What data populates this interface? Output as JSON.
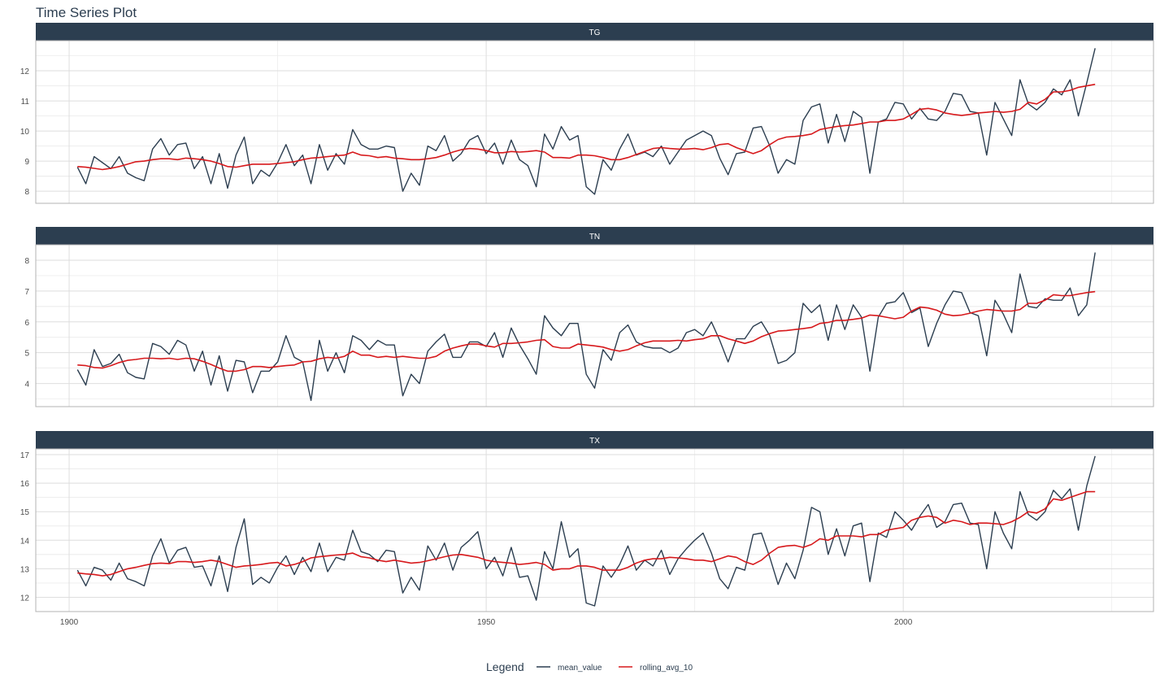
{
  "chart_data": {
    "type": "line",
    "title": "Time Series Plot",
    "xlabel": "",
    "ylabel": "",
    "legend": {
      "title": "Legend",
      "position": "bottom",
      "entries": [
        {
          "name": "mean_value",
          "color": "#2c3e50"
        },
        {
          "name": "rolling_avg_10",
          "color": "#d7191c"
        }
      ]
    },
    "grid": true,
    "xlim": [
      1896,
      2030
    ],
    "x_ticks": [
      1900,
      1950,
      2000
    ],
    "x": [
      1901,
      1902,
      1903,
      1904,
      1905,
      1906,
      1907,
      1908,
      1909,
      1910,
      1911,
      1912,
      1913,
      1914,
      1915,
      1916,
      1917,
      1918,
      1919,
      1920,
      1921,
      1922,
      1923,
      1924,
      1925,
      1926,
      1927,
      1928,
      1929,
      1930,
      1931,
      1932,
      1933,
      1934,
      1935,
      1936,
      1937,
      1938,
      1939,
      1940,
      1941,
      1942,
      1943,
      1944,
      1945,
      1946,
      1947,
      1948,
      1949,
      1950,
      1951,
      1952,
      1953,
      1954,
      1955,
      1956,
      1957,
      1958,
      1959,
      1960,
      1961,
      1962,
      1963,
      1964,
      1965,
      1966,
      1967,
      1968,
      1969,
      1970,
      1971,
      1972,
      1973,
      1974,
      1975,
      1976,
      1977,
      1978,
      1979,
      1980,
      1981,
      1982,
      1983,
      1984,
      1985,
      1986,
      1987,
      1988,
      1989,
      1990,
      1991,
      1992,
      1993,
      1994,
      1995,
      1996,
      1997,
      1998,
      1999,
      2000,
      2001,
      2002,
      2003,
      2004,
      2005,
      2006,
      2007,
      2008,
      2009,
      2010,
      2011,
      2012,
      2013,
      2014,
      2015,
      2016,
      2017,
      2018,
      2019,
      2020,
      2021,
      2022,
      2023
    ],
    "panels": [
      {
        "label": "TG",
        "ylim": [
          7.6,
          13.0
        ],
        "y_ticks": [
          8,
          9,
          10,
          11,
          12
        ],
        "series": [
          {
            "name": "mean_value",
            "values": [
              8.8,
              8.25,
              9.15,
              8.95,
              8.75,
              9.15,
              8.6,
              8.45,
              8.35,
              9.4,
              9.75,
              9.2,
              9.55,
              9.6,
              8.75,
              9.15,
              8.25,
              9.25,
              8.1,
              9.2,
              9.8,
              8.25,
              8.7,
              8.5,
              8.95,
              9.55,
              8.85,
              9.2,
              8.25,
              9.55,
              8.7,
              9.25,
              8.9,
              10.05,
              9.55,
              9.4,
              9.4,
              9.5,
              9.45,
              8.0,
              8.6,
              8.2,
              9.5,
              9.35,
              9.85,
              9.0,
              9.25,
              9.7,
              9.85,
              9.25,
              9.6,
              8.9,
              9.7,
              9.05,
              8.85,
              8.15,
              9.9,
              9.4,
              10.15,
              9.7,
              9.85,
              8.15,
              7.9,
              9.05,
              8.7,
              9.4,
              9.9,
              9.2,
              9.3,
              9.15,
              9.5,
              8.9,
              9.3,
              9.7,
              9.85,
              10.0,
              9.85,
              9.1,
              8.55,
              9.25,
              9.3,
              10.1,
              10.15,
              9.5,
              8.6,
              9.05,
              8.9,
              10.35,
              10.8,
              10.9,
              9.6,
              10.55,
              9.65,
              10.65,
              10.45,
              8.6,
              10.3,
              10.4,
              10.95,
              10.9,
              10.4,
              10.75,
              10.4,
              10.35,
              10.65,
              11.25,
              11.2,
              10.65,
              10.6,
              9.2,
              10.95,
              10.4,
              9.85,
              11.7,
              10.9,
              10.7,
              10.95,
              11.4,
              11.2,
              11.7,
              10.5,
              11.6,
              12.75
            ]
          },
          {
            "name": "rolling_avg_10",
            "values": [
              8.82,
              8.8,
              8.76,
              8.72,
              8.76,
              8.82,
              8.9,
              8.98,
              9.0,
              9.05,
              9.08,
              9.08,
              9.05,
              9.1,
              9.08,
              9.05,
              9.0,
              8.92,
              8.82,
              8.8,
              8.85,
              8.9,
              8.9,
              8.9,
              8.92,
              8.95,
              8.98,
              9.05,
              9.1,
              9.12,
              9.15,
              9.18,
              9.2,
              9.3,
              9.2,
              9.18,
              9.12,
              9.15,
              9.1,
              9.08,
              9.05,
              9.05,
              9.08,
              9.12,
              9.2,
              9.3,
              9.38,
              9.42,
              9.4,
              9.35,
              9.28,
              9.28,
              9.32,
              9.3,
              9.32,
              9.35,
              9.3,
              9.12,
              9.12,
              9.1,
              9.2,
              9.2,
              9.18,
              9.12,
              9.05,
              9.05,
              9.12,
              9.22,
              9.32,
              9.42,
              9.45,
              9.42,
              9.4,
              9.4,
              9.42,
              9.38,
              9.45,
              9.55,
              9.58,
              9.45,
              9.35,
              9.25,
              9.35,
              9.55,
              9.72,
              9.8,
              9.82,
              9.85,
              9.9,
              10.05,
              10.1,
              10.15,
              10.18,
              10.2,
              10.25,
              10.3,
              10.3,
              10.35,
              10.35,
              10.4,
              10.55,
              10.72,
              10.75,
              10.7,
              10.6,
              10.55,
              10.52,
              10.55,
              10.6,
              10.62,
              10.65,
              10.62,
              10.65,
              10.72,
              10.95,
              10.9,
              11.05,
              11.3,
              11.3,
              11.35,
              11.45,
              11.5,
              11.55
            ]
          }
        ]
      },
      {
        "label": "TN",
        "ylim": [
          3.25,
          8.5
        ],
        "y_ticks": [
          4,
          5,
          6,
          7,
          8
        ],
        "series": [
          {
            "name": "mean_value",
            "values": [
              4.45,
              3.95,
              5.1,
              4.55,
              4.65,
              4.95,
              4.35,
              4.2,
              4.15,
              5.3,
              5.2,
              4.95,
              5.4,
              5.25,
              4.4,
              5.05,
              3.95,
              4.9,
              3.75,
              4.75,
              4.7,
              3.7,
              4.4,
              4.4,
              4.7,
              5.55,
              4.85,
              4.7,
              3.45,
              5.4,
              4.4,
              5.0,
              4.35,
              5.55,
              5.4,
              5.1,
              5.4,
              5.25,
              5.25,
              3.6,
              4.3,
              4.0,
              5.05,
              5.35,
              5.6,
              4.85,
              4.85,
              5.35,
              5.35,
              5.2,
              5.65,
              4.85,
              5.8,
              5.25,
              4.8,
              4.3,
              6.2,
              5.8,
              5.55,
              5.95,
              5.95,
              4.3,
              3.85,
              5.1,
              4.75,
              5.65,
              5.9,
              5.35,
              5.2,
              5.15,
              5.15,
              5.0,
              5.15,
              5.65,
              5.75,
              5.55,
              6.0,
              5.4,
              4.7,
              5.45,
              5.45,
              5.85,
              6.0,
              5.55,
              4.65,
              4.75,
              5.0,
              6.6,
              6.3,
              6.55,
              5.4,
              6.55,
              5.75,
              6.55,
              6.15,
              4.4,
              6.15,
              6.6,
              6.65,
              6.95,
              6.3,
              6.45,
              5.2,
              5.95,
              6.55,
              7.0,
              6.95,
              6.3,
              6.2,
              4.9,
              6.7,
              6.25,
              5.65,
              7.55,
              6.5,
              6.45,
              6.75,
              6.7,
              6.7,
              7.1,
              6.2,
              6.55,
              8.25
            ]
          },
          {
            "name": "rolling_avg_10",
            "values": [
              4.6,
              4.58,
              4.52,
              4.5,
              4.58,
              4.68,
              4.75,
              4.78,
              4.82,
              4.82,
              4.8,
              4.82,
              4.78,
              4.82,
              4.8,
              4.72,
              4.62,
              4.5,
              4.4,
              4.4,
              4.45,
              4.55,
              4.55,
              4.52,
              4.55,
              4.58,
              4.6,
              4.7,
              4.72,
              4.8,
              4.85,
              4.82,
              4.88,
              5.05,
              4.92,
              4.92,
              4.85,
              4.88,
              4.85,
              4.88,
              4.85,
              4.82,
              4.82,
              4.88,
              5.05,
              5.15,
              5.22,
              5.28,
              5.28,
              5.22,
              5.18,
              5.3,
              5.3,
              5.32,
              5.35,
              5.4,
              5.42,
              5.2,
              5.15,
              5.15,
              5.28,
              5.25,
              5.22,
              5.18,
              5.1,
              5.05,
              5.1,
              5.22,
              5.32,
              5.38,
              5.38,
              5.38,
              5.4,
              5.38,
              5.42,
              5.45,
              5.55,
              5.55,
              5.45,
              5.38,
              5.3,
              5.38,
              5.52,
              5.62,
              5.7,
              5.72,
              5.75,
              5.78,
              5.82,
              5.95,
              5.98,
              6.05,
              6.05,
              6.08,
              6.12,
              6.22,
              6.2,
              6.15,
              6.1,
              6.15,
              6.35,
              6.48,
              6.45,
              6.38,
              6.25,
              6.2,
              6.22,
              6.28,
              6.35,
              6.4,
              6.38,
              6.35,
              6.35,
              6.4,
              6.6,
              6.6,
              6.7,
              6.88,
              6.85,
              6.85,
              6.9,
              6.95,
              6.98
            ]
          }
        ]
      },
      {
        "label": "TX",
        "ylim": [
          11.5,
          17.2
        ],
        "y_ticks": [
          12,
          13,
          14,
          15,
          16,
          17
        ],
        "series": [
          {
            "name": "mean_value",
            "values": [
              12.95,
              12.4,
              13.05,
              12.95,
              12.6,
              13.2,
              12.65,
              12.55,
              12.4,
              13.45,
              14.05,
              13.2,
              13.65,
              13.75,
              13.05,
              13.1,
              12.4,
              13.45,
              12.2,
              13.75,
              14.75,
              12.45,
              12.7,
              12.5,
              13.05,
              13.45,
              12.8,
              13.4,
              12.9,
              13.9,
              12.9,
              13.4,
              13.3,
              14.35,
              13.6,
              13.5,
              13.25,
              13.65,
              13.6,
              12.15,
              12.7,
              12.25,
              13.8,
              13.3,
              13.9,
              12.95,
              13.75,
              14.0,
              14.3,
              13.0,
              13.4,
              12.75,
              13.75,
              12.7,
              12.75,
              11.9,
              13.6,
              13.0,
              14.65,
              13.4,
              13.7,
              11.8,
              11.7,
              13.1,
              12.7,
              13.15,
              13.8,
              12.95,
              13.3,
              13.1,
              13.65,
              12.8,
              13.35,
              13.7,
              14.0,
              14.25,
              13.55,
              12.65,
              12.3,
              13.05,
              12.95,
              14.2,
              14.25,
              13.4,
              12.45,
              13.2,
              12.65,
              13.65,
              15.15,
              15.0,
              13.5,
              14.4,
              13.45,
              14.5,
              14.6,
              12.55,
              14.25,
              14.1,
              15.0,
              14.7,
              14.35,
              14.85,
              15.25,
              14.45,
              14.65,
              15.25,
              15.3,
              14.6,
              14.55,
              13.0,
              15.0,
              14.25,
              13.7,
              15.7,
              14.9,
              14.7,
              15.0,
              15.75,
              15.45,
              15.8,
              14.35,
              15.9,
              16.95
            ]
          },
          {
            "name": "rolling_avg_10",
            "values": [
              12.85,
              12.82,
              12.8,
              12.75,
              12.8,
              12.9,
              13.0,
              13.05,
              13.12,
              13.18,
              13.2,
              13.18,
              13.25,
              13.25,
              13.22,
              13.25,
              13.3,
              13.25,
              13.15,
              13.05,
              13.1,
              13.12,
              13.15,
              13.2,
              13.22,
              13.1,
              13.15,
              13.25,
              13.38,
              13.42,
              13.45,
              13.48,
              13.5,
              13.55,
              13.42,
              13.38,
              13.3,
              13.25,
              13.3,
              13.25,
              13.2,
              13.22,
              13.28,
              13.35,
              13.42,
              13.48,
              13.5,
              13.45,
              13.4,
              13.3,
              13.25,
              13.22,
              13.2,
              13.15,
              13.18,
              13.22,
              13.15,
              12.95,
              13.0,
              13.0,
              13.1,
              13.1,
              13.05,
              12.95,
              12.95,
              12.95,
              13.05,
              13.2,
              13.3,
              13.35,
              13.35,
              13.4,
              13.38,
              13.35,
              13.3,
              13.3,
              13.25,
              13.35,
              13.45,
              13.4,
              13.25,
              13.15,
              13.3,
              13.55,
              13.75,
              13.8,
              13.82,
              13.75,
              13.85,
              14.05,
              14.0,
              14.15,
              14.15,
              14.15,
              14.12,
              14.2,
              14.2,
              14.35,
              14.4,
              14.45,
              14.7,
              14.8,
              14.85,
              14.8,
              14.6,
              14.7,
              14.65,
              14.55,
              14.6,
              14.6,
              14.58,
              14.55,
              14.65,
              14.8,
              15.0,
              14.95,
              15.1,
              15.45,
              15.4,
              15.5,
              15.6,
              15.7,
              15.7
            ]
          }
        ]
      }
    ]
  }
}
